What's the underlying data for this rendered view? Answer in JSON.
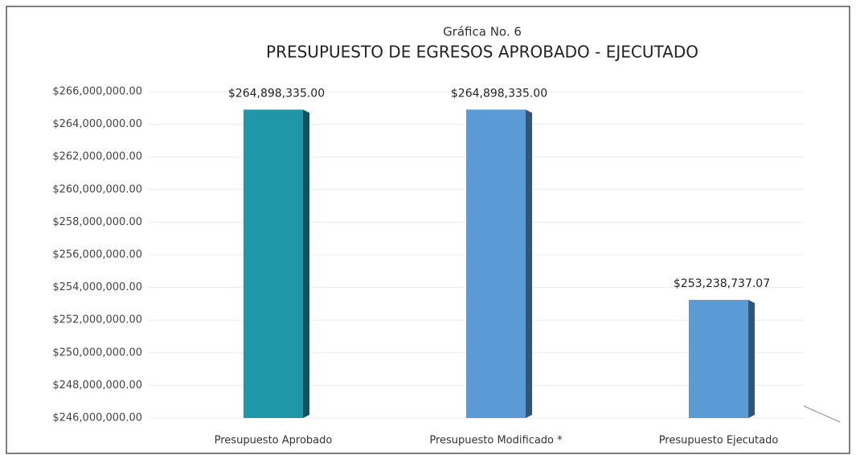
{
  "chart_data": {
    "type": "bar",
    "subtitle": "Gráfica No. 6",
    "title": "PRESUPUESTO DE EGRESOS APROBADO - EJECUTADO",
    "categories": [
      "Presupuesto Aprobado",
      "Presupuesto Modificado *",
      "Presupuesto Ejecutado"
    ],
    "values": [
      264898335,
      264898335,
      253238737.07
    ],
    "value_labels": [
      "$264,898,335.00",
      "$264,898,335.00",
      "$253,238,737.07"
    ],
    "colors": [
      "#1f97a9",
      "#5b9bd5",
      "#5b9bd5"
    ],
    "ylim": [
      246000000,
      266000000
    ],
    "yticks": [
      {
        "value": 246000000,
        "label": "$246,000,000.00"
      },
      {
        "value": 248000000,
        "label": "$248,000,000.00"
      },
      {
        "value": 250000000,
        "label": "$250,000,000.00"
      },
      {
        "value": 252000000,
        "label": "$252,000,000.00"
      },
      {
        "value": 254000000,
        "label": "$254,000,000.00"
      },
      {
        "value": 256000000,
        "label": "$256,000,000.00"
      },
      {
        "value": 258000000,
        "label": "$258,000,000.00"
      },
      {
        "value": 260000000,
        "label": "$260,000,000.00"
      },
      {
        "value": 262000000,
        "label": "$262,000,000.00"
      },
      {
        "value": 264000000,
        "label": "$264,000,000.00"
      },
      {
        "value": 266000000,
        "label": "$266,000,000.00"
      }
    ],
    "grid": true
  }
}
